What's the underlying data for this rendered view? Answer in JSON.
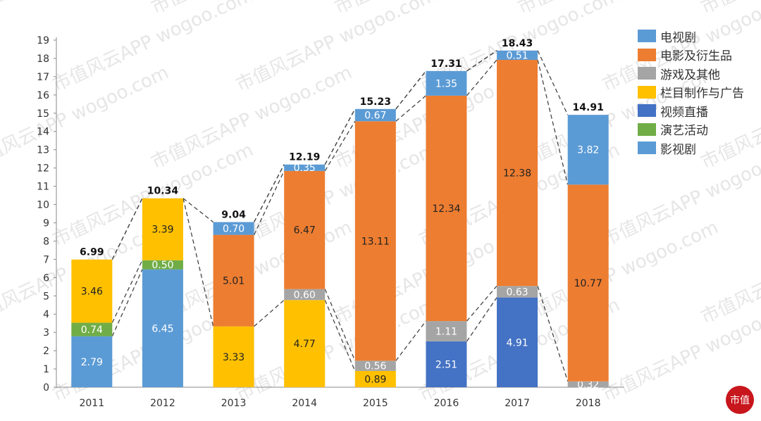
{
  "chart_data": {
    "type": "bar",
    "stacked": true,
    "categories": [
      "2011",
      "2012",
      "2013",
      "2014",
      "2015",
      "2016",
      "2017",
      "2018"
    ],
    "ylim": [
      0,
      19
    ],
    "yticks": [
      0,
      1,
      2,
      3,
      4,
      5,
      6,
      7,
      8,
      9,
      10,
      11,
      12,
      13,
      14,
      15,
      16,
      17,
      18,
      19
    ],
    "grid": false,
    "legend_position": "right",
    "legend": [
      {
        "name": "电视剧",
        "color": "#5B9BD5"
      },
      {
        "name": "电影及衍生品",
        "color": "#ED7D31"
      },
      {
        "name": "游戏及其他",
        "color": "#A5A5A5"
      },
      {
        "name": "栏目制作与广告",
        "color": "#FFC000"
      },
      {
        "name": "视频直播",
        "color": "#4472C4"
      },
      {
        "name": "演艺活动",
        "color": "#70AD47"
      },
      {
        "name": "影视剧",
        "color": "#5B9BD5"
      }
    ],
    "bars": [
      {
        "year": "2011",
        "total": "6.99",
        "segments": [
          {
            "series": "影视剧",
            "value": 2.79
          },
          {
            "series": "演艺活动",
            "value": 0.74
          },
          {
            "series": "栏目制作与广告",
            "value": 3.46
          }
        ]
      },
      {
        "year": "2012",
        "total": "10.34",
        "segments": [
          {
            "series": "影视剧",
            "value": 6.45
          },
          {
            "series": "演艺活动",
            "value": 0.5
          },
          {
            "series": "栏目制作与广告",
            "value": 3.39
          }
        ]
      },
      {
        "year": "2013",
        "total": "9.04",
        "segments": [
          {
            "series": "栏目制作与广告",
            "value": 3.33
          },
          {
            "series": "电影及衍生品",
            "value": 5.01
          },
          {
            "series": "电视剧",
            "value": 0.7
          }
        ]
      },
      {
        "year": "2014",
        "total": "12.19",
        "segments": [
          {
            "series": "栏目制作与广告",
            "value": 4.77
          },
          {
            "series": "游戏及其他",
            "value": 0.6
          },
          {
            "series": "电影及衍生品",
            "value": 6.47
          },
          {
            "series": "电视剧",
            "value": 0.35
          }
        ]
      },
      {
        "year": "2015",
        "total": "15.23",
        "segments": [
          {
            "series": "栏目制作与广告",
            "value": 0.89
          },
          {
            "series": "游戏及其他",
            "value": 0.56
          },
          {
            "series": "电影及衍生品",
            "value": 13.11
          },
          {
            "series": "电视剧",
            "value": 0.67
          }
        ]
      },
      {
        "year": "2016",
        "total": "17.31",
        "segments": [
          {
            "series": "视频直播",
            "value": 2.51
          },
          {
            "series": "游戏及其他",
            "value": 1.11
          },
          {
            "series": "电影及衍生品",
            "value": 12.34
          },
          {
            "series": "电视剧",
            "value": 1.35
          }
        ]
      },
      {
        "year": "2017",
        "total": "18.43",
        "segments": [
          {
            "series": "视频直播",
            "value": 4.91
          },
          {
            "series": "游戏及其他",
            "value": 0.63
          },
          {
            "series": "电影及衍生品",
            "value": 12.38
          },
          {
            "series": "电视剧",
            "value": 0.51
          }
        ]
      },
      {
        "year": "2018",
        "total": "14.91",
        "segments": [
          {
            "series": "游戏及其他",
            "value": 0.32
          },
          {
            "series": "电影及衍生品",
            "value": 10.77
          },
          {
            "series": "影视剧",
            "value": 3.82
          }
        ]
      }
    ]
  },
  "watermark": "市值风云APP wogoo.com",
  "logo": "市值"
}
